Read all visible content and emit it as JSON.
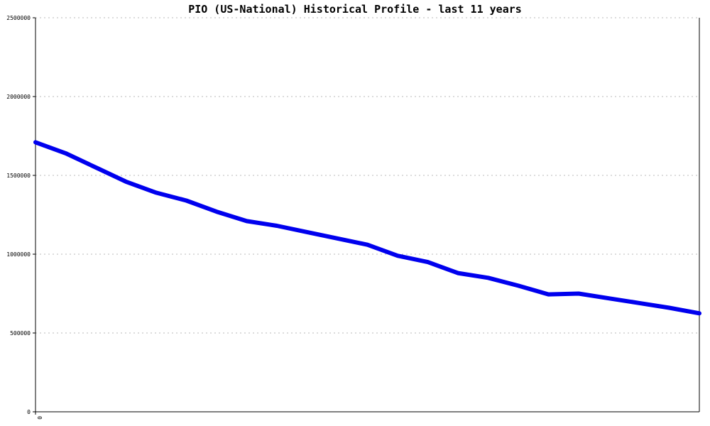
{
  "chart_data": {
    "type": "line",
    "title": "PIO (US-National) Historical Profile - last 11 years",
    "xlabel": "",
    "ylabel": "",
    "x": [
      0,
      1,
      2,
      3,
      4,
      5,
      6,
      7,
      8,
      9,
      10,
      11,
      12,
      13,
      14,
      15,
      16,
      17,
      18,
      19,
      20,
      21,
      22
    ],
    "x_tick_labels": [
      "0"
    ],
    "y_ticks": [
      0,
      500000,
      1000000,
      1500000,
      2000000,
      2500000
    ],
    "y_tick_labels": [
      "0",
      "500000",
      "1000000",
      "1500000",
      "2000000",
      "2500000"
    ],
    "ylim": [
      0,
      2500000
    ],
    "grid": true,
    "legend": "none",
    "series": [
      {
        "values": [
          1710000,
          1640000,
          1550000,
          1460000,
          1390000,
          1340000,
          1270000,
          1210000,
          1180000,
          1140000,
          1100000,
          1060000,
          990000,
          950000,
          880000,
          850000,
          800000,
          745000,
          750000,
          720000,
          690000,
          660000,
          625000
        ],
        "color": "#0000ee"
      }
    ]
  }
}
